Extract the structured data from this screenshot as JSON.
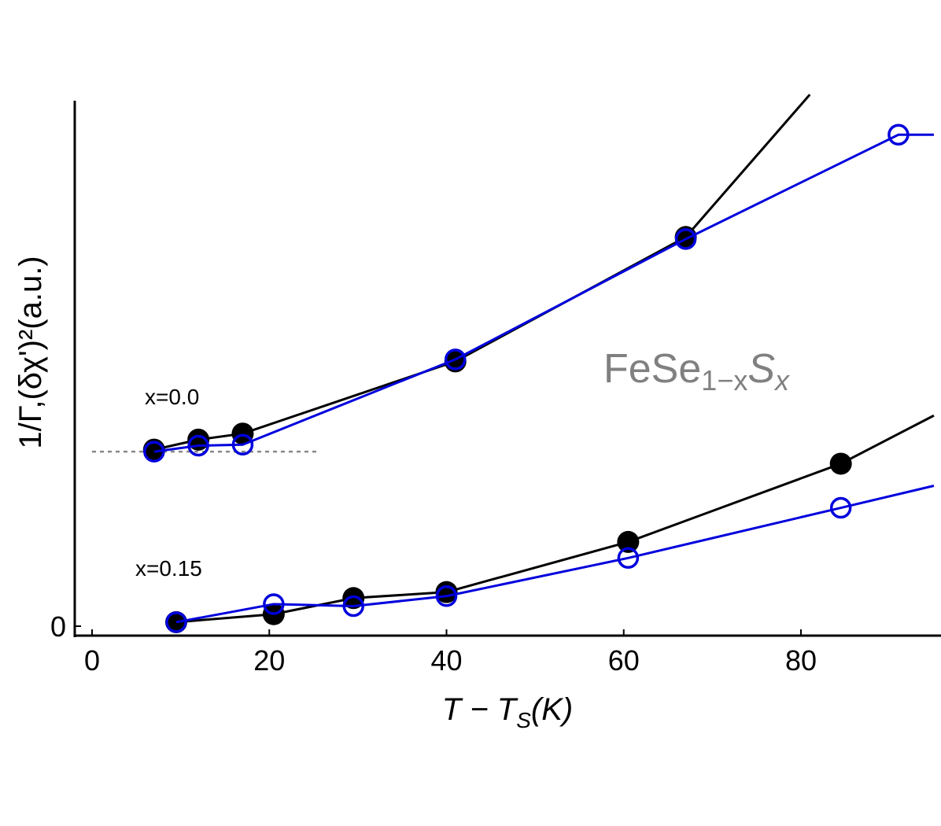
{
  "chart_data": {
    "type": "line",
    "title": "",
    "xlabel": {
      "main": "T − T",
      "sub": "S",
      "tail": "(K)"
    },
    "ylabel": "1/Γ,(δχ')²(a.u.)",
    "xlim": [
      -3,
      95
    ],
    "ylim": [
      -0.5,
      26
    ],
    "x_ticks": [
      "0",
      "20",
      "40",
      "60",
      "80"
    ],
    "y_ticks": [
      "0"
    ],
    "annotations": {
      "x0": "x=0.0",
      "x15": "x=0.15",
      "formula": {
        "base": "FeSe",
        "sub1": "1−x",
        "italic": "S",
        "sub2": "x"
      }
    },
    "reference_line": {
      "y": 8.7,
      "x_range": [
        0,
        25.5
      ]
    },
    "series": [
      {
        "group": "x=0.0",
        "marker": "filled",
        "color": "#000000",
        "x": [
          7,
          12,
          17,
          41,
          67,
          81
        ],
        "y": [
          8.8,
          9.3,
          9.6,
          13.2,
          19.4,
          26.5
        ]
      },
      {
        "group": "x=0.0",
        "marker": "open",
        "color": "#0000dd",
        "x": [
          7,
          12,
          17,
          41,
          67,
          91,
          95
        ],
        "y": [
          8.7,
          9.0,
          9.05,
          13.3,
          19.3,
          24.5,
          24.5
        ]
      },
      {
        "group": "x=0.15",
        "marker": "filled",
        "color": "#000000",
        "x": [
          9.5,
          20.5,
          29.5,
          40,
          60.5,
          84.5,
          95
        ],
        "y": [
          0.2,
          0.6,
          1.4,
          1.7,
          4.2,
          8.1,
          10.5
        ]
      },
      {
        "group": "x=0.15",
        "marker": "open",
        "color": "#0000dd",
        "x": [
          9.5,
          20.5,
          29.5,
          40,
          60.5,
          84.5,
          95
        ],
        "y": [
          0.2,
          1.1,
          1.0,
          1.5,
          3.4,
          5.9,
          7.0
        ]
      }
    ],
    "last_point_marker_hidden": [
      true,
      true,
      true,
      true
    ],
    "grid": false,
    "legend": "none"
  }
}
